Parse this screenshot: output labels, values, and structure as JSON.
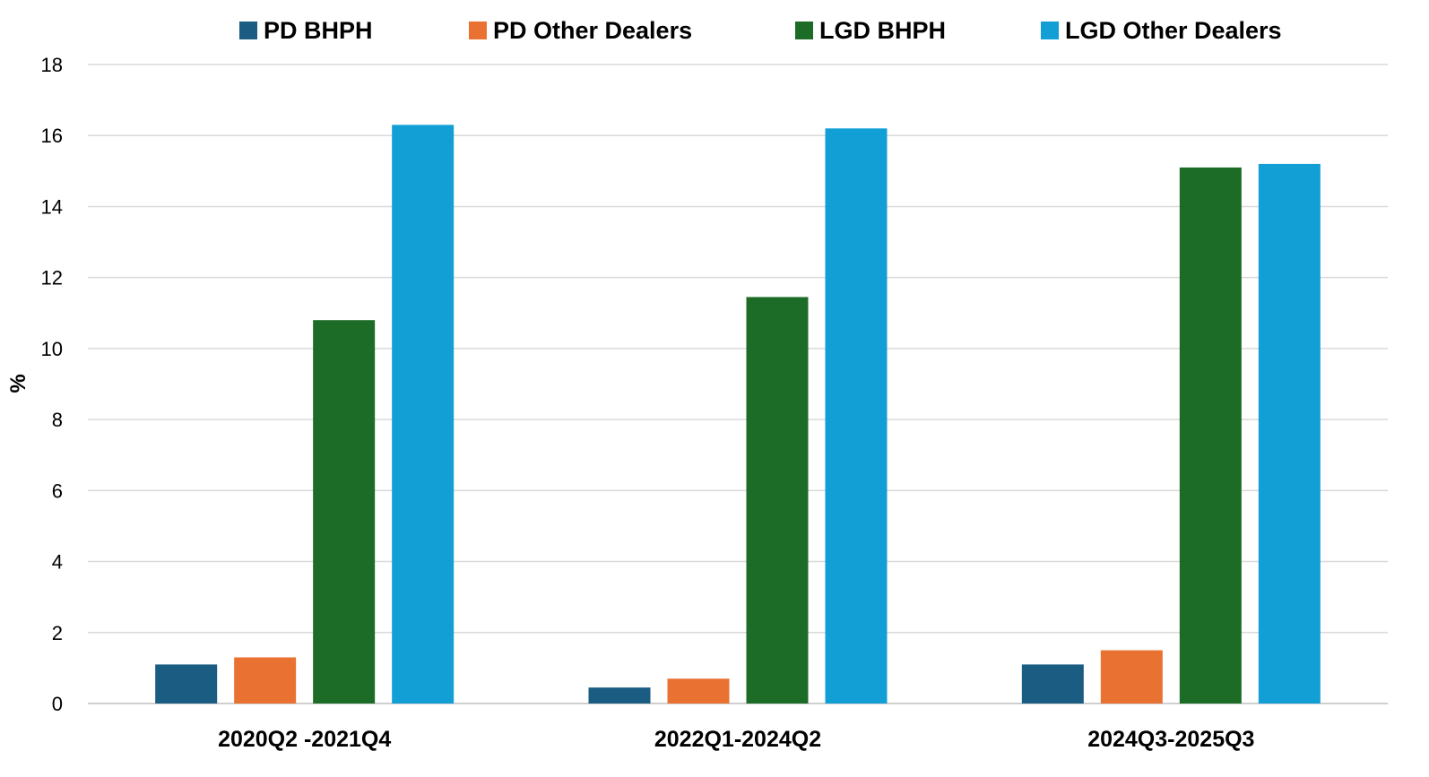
{
  "chart_data": {
    "type": "bar",
    "title": "",
    "xlabel": "",
    "ylabel": "%",
    "ylim": [
      0,
      18
    ],
    "yticks": [
      0,
      2,
      4,
      6,
      8,
      10,
      12,
      14,
      16,
      18
    ],
    "grid": true,
    "legend_position": "top",
    "categories": [
      "2020Q2 -2021Q4",
      "2022Q1-2024Q2",
      "2024Q3-2025Q3"
    ],
    "series": [
      {
        "name": "PD BHPH",
        "color": "#1a5c82",
        "values": [
          1.1,
          0.45,
          1.1
        ]
      },
      {
        "name": "PD Other Dealers",
        "color": "#e97132",
        "values": [
          1.3,
          0.7,
          1.5
        ]
      },
      {
        "name": "LGD BHPH",
        "color": "#1c6b27",
        "values": [
          10.8,
          11.45,
          15.1
        ]
      },
      {
        "name": "LGD Other Dealers",
        "color": "#129fd6",
        "values": [
          16.3,
          16.2,
          15.2
        ]
      }
    ]
  }
}
